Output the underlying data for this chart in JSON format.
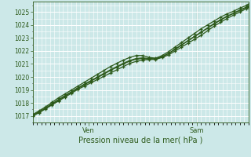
{
  "xlabel": "Pression niveau de la mer( hPa )",
  "bg_color": "#cce8e8",
  "grid_color_major": "#b0d8d8",
  "grid_color_minor": "#c0e0e0",
  "line_color": "#2d5a1b",
  "vline_color": "#4a7a4a",
  "ylim": [
    1016.5,
    1025.8
  ],
  "xlim": [
    0,
    100
  ],
  "yticks": [
    1017,
    1018,
    1019,
    1020,
    1021,
    1022,
    1023,
    1024,
    1025
  ],
  "ven_x": 26,
  "sam_x": 76,
  "lines": [
    [
      0,
      1017.0,
      3,
      1017.25,
      6,
      1017.55,
      9,
      1017.85,
      12,
      1018.15,
      15,
      1018.45,
      18,
      1018.75,
      21,
      1019.05,
      24,
      1019.3,
      27,
      1019.55,
      30,
      1019.8,
      33,
      1020.05,
      36,
      1020.3,
      39,
      1020.55,
      42,
      1020.8,
      45,
      1021.05,
      48,
      1021.2,
      51,
      1021.3,
      54,
      1021.35,
      57,
      1021.35,
      60,
      1021.5,
      63,
      1021.7,
      66,
      1022.0,
      69,
      1022.3,
      72,
      1022.6,
      75,
      1022.9,
      78,
      1023.2,
      81,
      1023.55,
      84,
      1023.9,
      87,
      1024.2,
      90,
      1024.5,
      93,
      1024.75,
      96,
      1025.0,
      99,
      1025.25,
      100,
      1025.35
    ],
    [
      0,
      1017.1,
      3,
      1017.4,
      6,
      1017.7,
      9,
      1018.05,
      12,
      1018.4,
      15,
      1018.7,
      18,
      1019.0,
      21,
      1019.3,
      24,
      1019.6,
      27,
      1019.9,
      30,
      1020.2,
      33,
      1020.5,
      36,
      1020.8,
      39,
      1021.05,
      42,
      1021.3,
      45,
      1021.5,
      48,
      1021.65,
      51,
      1021.65,
      54,
      1021.5,
      57,
      1021.45,
      60,
      1021.65,
      63,
      1021.95,
      66,
      1022.3,
      69,
      1022.65,
      72,
      1023.0,
      75,
      1023.35,
      78,
      1023.7,
      81,
      1024.0,
      84,
      1024.3,
      87,
      1024.6,
      90,
      1024.85,
      93,
      1025.05,
      96,
      1025.3,
      99,
      1025.5,
      100,
      1025.6
    ],
    [
      0,
      1017.05,
      3,
      1017.32,
      6,
      1017.62,
      9,
      1017.94,
      12,
      1018.27,
      15,
      1018.57,
      18,
      1018.87,
      21,
      1019.17,
      24,
      1019.45,
      27,
      1019.72,
      30,
      1020.0,
      33,
      1020.27,
      36,
      1020.55,
      39,
      1020.8,
      42,
      1021.05,
      45,
      1021.27,
      48,
      1021.42,
      51,
      1021.47,
      54,
      1021.42,
      57,
      1021.4,
      60,
      1021.57,
      63,
      1021.82,
      66,
      1022.15,
      69,
      1022.47,
      72,
      1022.8,
      75,
      1023.12,
      78,
      1023.45,
      81,
      1023.77,
      84,
      1024.1,
      87,
      1024.4,
      90,
      1024.67,
      93,
      1024.9,
      96,
      1025.15,
      99,
      1025.37,
      100,
      1025.47
    ],
    [
      0,
      1017.02,
      3,
      1017.28,
      6,
      1017.58,
      9,
      1017.9,
      12,
      1018.22,
      15,
      1018.52,
      18,
      1018.82,
      21,
      1019.12,
      24,
      1019.4,
      27,
      1019.67,
      30,
      1019.95,
      33,
      1020.22,
      36,
      1020.5,
      39,
      1020.75,
      42,
      1021.0,
      45,
      1021.22,
      48,
      1021.37,
      51,
      1021.42,
      54,
      1021.37,
      57,
      1021.37,
      60,
      1021.55,
      63,
      1021.8,
      66,
      1022.12,
      69,
      1022.45,
      72,
      1022.78,
      75,
      1023.1,
      78,
      1023.42,
      81,
      1023.75,
      84,
      1024.07,
      87,
      1024.37,
      90,
      1024.65,
      93,
      1024.88,
      96,
      1025.12,
      99,
      1025.35,
      100,
      1025.45
    ]
  ]
}
